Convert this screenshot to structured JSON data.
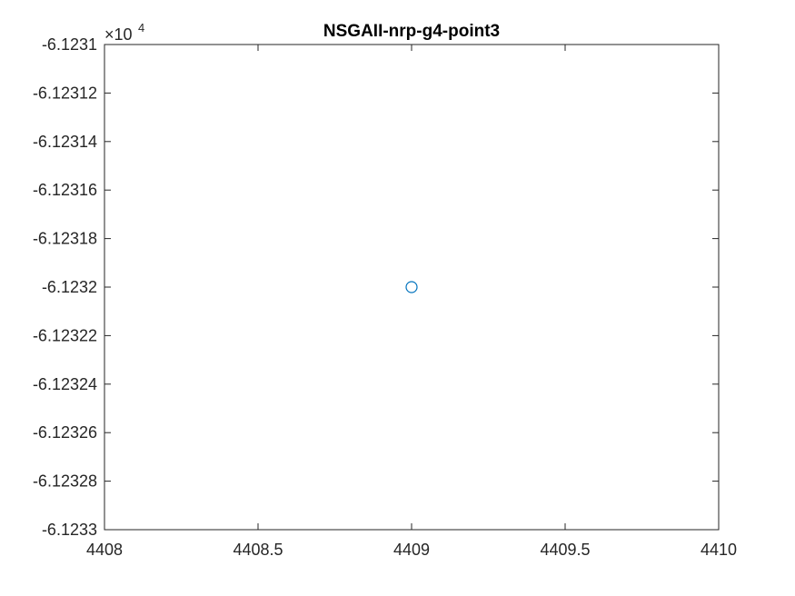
{
  "chart_data": {
    "type": "scatter",
    "title": "NSGAII-nrp-g4-point3",
    "xlabel": "",
    "ylabel": "",
    "xlim": [
      4408,
      4410
    ],
    "ylim": [
      -6.1233,
      -6.1231
    ],
    "y_exponent_label": {
      "base": "×10",
      "power": "4"
    },
    "x_ticks": [
      4408,
      4408.5,
      4409,
      4409.5,
      4410
    ],
    "x_tick_labels": [
      "4408",
      "4408.5",
      "4409",
      "4409.5",
      "4410"
    ],
    "y_ticks": [
      -6.1231,
      -6.12312,
      -6.12314,
      -6.12316,
      -6.12318,
      -6.1232,
      -6.12322,
      -6.12324,
      -6.12326,
      -6.12328,
      -6.1233
    ],
    "y_tick_labels": [
      "-6.1231",
      "-6.12312",
      "-6.12314",
      "-6.12316",
      "-6.12318",
      "-6.1232",
      "-6.12322",
      "-6.12324",
      "-6.12326",
      "-6.12328",
      "-6.1233"
    ],
    "grid": false,
    "series": [
      {
        "x": [
          4409
        ],
        "y": [
          -6.1232
        ],
        "marker": "circle",
        "color": "#0072BD"
      }
    ]
  }
}
